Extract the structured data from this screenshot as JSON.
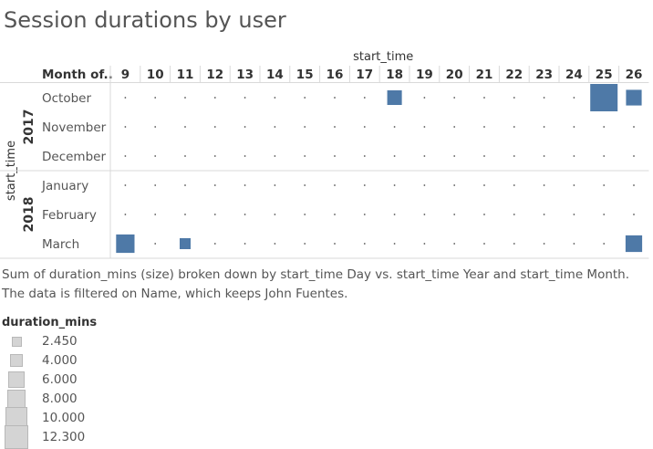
{
  "title": "Session durations by user",
  "caption": "Sum of duration_mins (size) broken down by start_time Day vs. start_time Year and start_time Month.  The data is filtered on Name, which keeps John Fuentes.",
  "colors": {
    "mark": "#4e79a7",
    "legend_box": "#d4d4d4",
    "dot": "#555555"
  },
  "legend": {
    "title": "duration_mins",
    "items": [
      "2.450",
      "4.000",
      "6.000",
      "8.000",
      "10.000",
      "12.300"
    ],
    "values": [
      2.45,
      4.0,
      6.0,
      8.0,
      10.0,
      12.3
    ]
  },
  "chart_data": {
    "type": "scatter",
    "title": "Session durations by user",
    "column_header": "start_time",
    "row_header": "start_time",
    "month_header": "Month of..",
    "days": [
      "9",
      "10",
      "11",
      "12",
      "13",
      "14",
      "15",
      "16",
      "17",
      "18",
      "19",
      "20",
      "21",
      "22",
      "23",
      "24",
      "25",
      "26"
    ],
    "years": [
      {
        "year": "2017",
        "months": [
          "October",
          "November",
          "December"
        ]
      },
      {
        "year": "2018",
        "months": [
          "January",
          "February",
          "March"
        ]
      }
    ],
    "size_measure": "duration_mins",
    "size_range": [
      2.45,
      12.3
    ],
    "points": [
      {
        "year": "2017",
        "month": "October",
        "day": "18",
        "value": 4.0
      },
      {
        "year": "2017",
        "month": "October",
        "day": "25",
        "value": 12.3
      },
      {
        "year": "2017",
        "month": "October",
        "day": "26",
        "value": 4.5
      },
      {
        "year": "2018",
        "month": "March",
        "day": "9",
        "value": 6.0
      },
      {
        "year": "2018",
        "month": "March",
        "day": "11",
        "value": 2.45
      },
      {
        "year": "2018",
        "month": "March",
        "day": "26",
        "value": 5.0
      }
    ]
  }
}
